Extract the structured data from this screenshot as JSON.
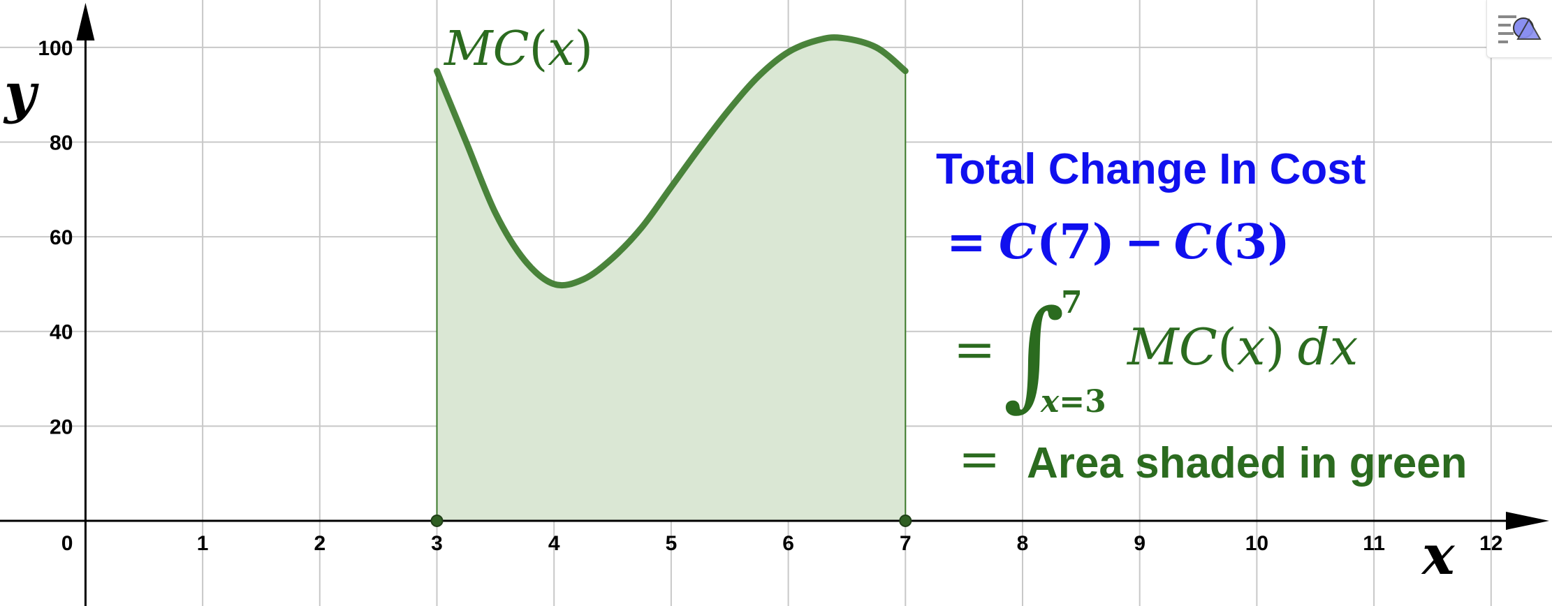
{
  "chart_data": {
    "type": "area",
    "curve_label": "MC(x)",
    "xlabel": "x",
    "ylabel": "y",
    "xlim": [
      -0.73,
      12.52
    ],
    "ylim": [
      -18,
      110
    ],
    "x_ticks": [
      1,
      2,
      3,
      4,
      5,
      6,
      7,
      8,
      9,
      10,
      11,
      12
    ],
    "y_ticks": [
      20,
      40,
      60,
      80,
      100
    ],
    "origin_label": "0",
    "grid": true,
    "series": [
      {
        "x": [
          3,
          3.25,
          3.5,
          3.75,
          4,
          4.25,
          4.5,
          4.75,
          5,
          5.25,
          5.5,
          5.75,
          6,
          6.25,
          6.45,
          6.75,
          7
        ],
        "y": [
          95,
          80,
          65,
          55,
          50,
          51,
          55.5,
          62,
          70.5,
          79,
          87,
          94,
          99,
          101.5,
          102,
          100,
          95
        ]
      }
    ],
    "shaded_interval": [
      3,
      7
    ],
    "endpoints": [
      [
        3,
        0
      ],
      [
        7,
        0
      ]
    ],
    "colors": {
      "curve": "#3c7a2b",
      "fill": "#dae7d4",
      "blue_text": "#1010ee",
      "green_text": "#2b6b1f"
    }
  },
  "annotation": {
    "title": "Total Change In Cost",
    "line1": {
      "eq": "=",
      "c1": "C",
      "n1": "7",
      "c2": "C",
      "n2": "3",
      "minus": "−",
      "lp": "(",
      "rp": ")"
    },
    "line2": {
      "eq": "=",
      "integral": "∫",
      "upper": "7",
      "lower_var": "x",
      "lower_eq": "=",
      "lower_val": "3",
      "integrand": "MC",
      "arg": "x",
      "dvar": "x",
      "d": "d",
      "lp": "(",
      "rp": ")"
    },
    "line3": {
      "eq": "=",
      "text": "Area shaded in green"
    }
  },
  "toolbar": {
    "style_icon": "graphics-style-icon"
  }
}
